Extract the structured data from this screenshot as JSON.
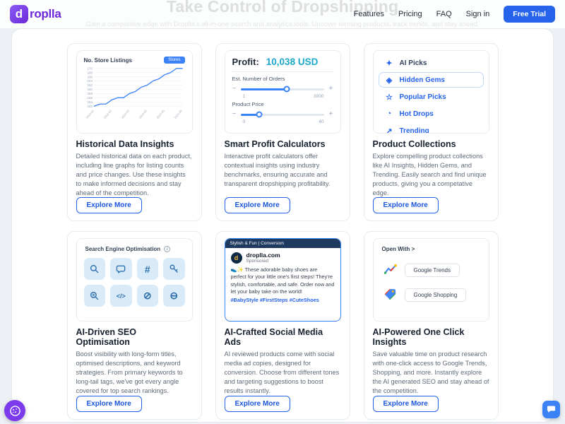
{
  "hero": {
    "title": "Take Control of Dropshipping",
    "subtitle": "Gain a competitive edge with Droplla's all-in-one search and analytics tools. Uncover winning products, track trends, and stay ahead."
  },
  "header": {
    "logo": {
      "icon_letter": "d",
      "text_rest": "roplla"
    },
    "nav": [
      {
        "label": "Features"
      },
      {
        "label": "Pricing"
      },
      {
        "label": "FAQ"
      },
      {
        "label": "Sign in"
      }
    ],
    "cta_label": "Free Trial"
  },
  "chart_data": {
    "type": "line",
    "title": "No. Store Listings",
    "x": [
      "2024-01",
      "2024-02",
      "2024-03",
      "2024-04",
      "2024-05",
      "2024-06"
    ],
    "values": [
      152,
      153,
      153,
      155,
      156,
      156,
      158,
      159,
      161,
      162,
      164,
      165,
      167,
      168,
      170,
      170
    ],
    "ylim": [
      152,
      170
    ],
    "yticks": [
      152,
      154,
      156,
      158,
      160,
      162,
      164,
      166,
      168,
      170
    ],
    "line_color": "#3B82F6",
    "grid": true,
    "legend": false
  },
  "cards": [
    {
      "title": "Historical Data Insights",
      "description": "Detailed historical data on each product, including line graphs for listing counts and price changes. Use these insights to make informed decisions and stay ahead of the competition.",
      "button_label": "Explore More",
      "visual": {
        "badge_label": "Stores"
      }
    },
    {
      "title": "Smart Profit Calculators",
      "description": "Interactive profit calculators offer contextual insights using industry benchmarks, ensuring accurate and transparent dropshipping profitability.",
      "button_label": "Explore More",
      "visual": {
        "profit_label": "Profit:",
        "profit_value": "10,038 USD",
        "minus_label": "−",
        "plus_label": "+",
        "sliders": [
          {
            "label": "Est. Number of Orders",
            "min": "1",
            "max": "3000",
            "pct": 55
          },
          {
            "label": "Product Price",
            "min": "0",
            "max": "40",
            "pct": 22
          }
        ]
      }
    },
    {
      "title": "Product Collections",
      "description": "Explore compelling product collections like AI Insights, Hidden Gems, and Trending. Easily search and find unique products, giving you a competative edge.",
      "button_label": "Explore More",
      "visual": {
        "items": [
          {
            "label": "AI Picks",
            "glyph": "✦",
            "selected": false
          },
          {
            "label": "Hidden Gems",
            "glyph": "◈",
            "selected": true
          },
          {
            "label": "Popular Picks",
            "glyph": "☆",
            "selected": false
          },
          {
            "label": "Hot Drops",
            "glyph": "◔",
            "selected": false
          },
          {
            "label": "Trending",
            "glyph": "↗",
            "selected": false
          }
        ]
      }
    },
    {
      "title": "AI-Driven SEO Optimisation",
      "description": "Boost visibility with long-form titles, optimised descriptions, and keyword strategies. From primary keywords to long-tail tags, we've got every angle covered for top search rankings.",
      "button_label": "Explore More",
      "visual": {
        "header": "Search Engine Optimisation",
        "info_glyph": "i",
        "glyphs": {
          "hashtag": "#",
          "code": "</>",
          "null": "⊘",
          "minus": "⊖"
        },
        "icons": [
          "search",
          "chat-bubble",
          "hashtag",
          "key",
          "search-settings",
          "code",
          "strikethrough-circle",
          "minus-circle"
        ]
      }
    },
    {
      "title": "AI-Crafted Social Media Ads",
      "description": "AI reviewed products come with social media ad copies, designed for conversion. Choose from different tones and targeting suggestions to boost results instantly.",
      "button_label": "Explore More",
      "visual": {
        "banner": "Stylish & Fun | Conversion",
        "logo_letter": "d",
        "site": "droplla.com",
        "sponsored": "Sponsored",
        "body": "👟✨ These adorable baby shoes are perfect for your little one's first steps! They're stylish, comfortable, and safe. Order now and let your baby take on the world!",
        "hashtags": "#BabyStyle #FirstSteps #CuteShoes"
      }
    },
    {
      "title": "AI-Powered One Click Insights",
      "description": "Save valuable time on product research with one-click access to Google Trends, Shopping, and more. Instantly explore the AI generated SEO and stay ahead of the competition.",
      "button_label": "Explore More",
      "visual": {
        "header": "Open With >",
        "links": [
          {
            "label": "Google Trends"
          },
          {
            "label": "Google Shopping"
          }
        ]
      }
    }
  ],
  "colors": {
    "accent_blue": "#2563EB",
    "brand_purple": "#6D28D9",
    "profit_teal": "#1CA7C8",
    "chart_blue": "#3B82F6",
    "tile_blue": "#D9EBF8"
  }
}
